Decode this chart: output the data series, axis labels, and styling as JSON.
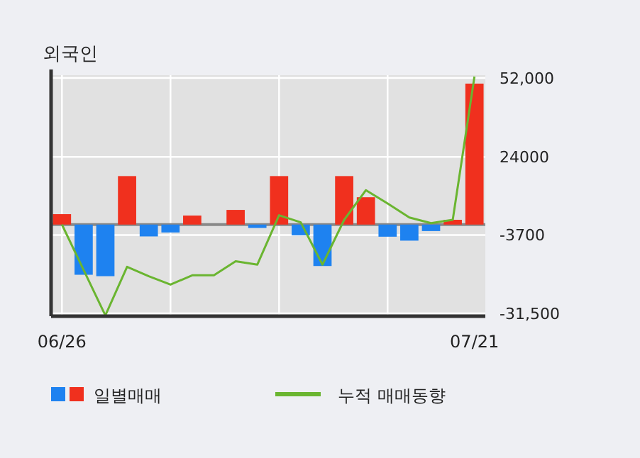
{
  "chart_data": {
    "type": "bar",
    "title": "외국인",
    "categories": [
      "06/26",
      null,
      null,
      null,
      null,
      null,
      null,
      null,
      null,
      null,
      null,
      null,
      null,
      null,
      null,
      null,
      null,
      null,
      null,
      "07/21"
    ],
    "series": [
      {
        "name": "일별매매",
        "colors": [
          "#f0301e",
          "#1e82f0",
          "#1e82f0",
          "#f0301e",
          "#1e82f0",
          "#1e82f0",
          "#f0301e",
          "#f0301e",
          "#f0301e",
          "#1e82f0",
          "#f0301e",
          "#1e82f0",
          "#1e82f0",
          "#f0301e",
          "#f0301e",
          "#1e82f0",
          "#1e82f0",
          "#1e82f0",
          "#f0301e",
          "#f0301e"
        ],
        "values": [
          3700,
          -17800,
          -18300,
          17200,
          -4200,
          -2800,
          3200,
          0,
          5200,
          -1200,
          17200,
          -3800,
          -14700,
          17200,
          9700,
          -4300,
          -5700,
          -2300,
          1700,
          50000
        ]
      },
      {
        "name": "누적 매매동향",
        "type": "line",
        "color": "#6ab530",
        "values": [
          0,
          -16100,
          -32200,
          -15000,
          -18300,
          -21300,
          -18000,
          -18000,
          -13000,
          -14200,
          3300,
          800,
          -14200,
          1700,
          12200,
          7500,
          2500,
          500,
          1700,
          52500
        ]
      }
    ],
    "ylim": [
      -32500,
      53000
    ],
    "yticks": [
      {
        "value": 52000,
        "label": "52,000"
      },
      24000,
      -3700,
      {
        "value": -31500,
        "label": "-31,500"
      }
    ],
    "ref_lines": [
      {
        "axis": "y",
        "value": 0,
        "color": "#888888"
      }
    ],
    "grid": true,
    "legend": "bottom"
  }
}
